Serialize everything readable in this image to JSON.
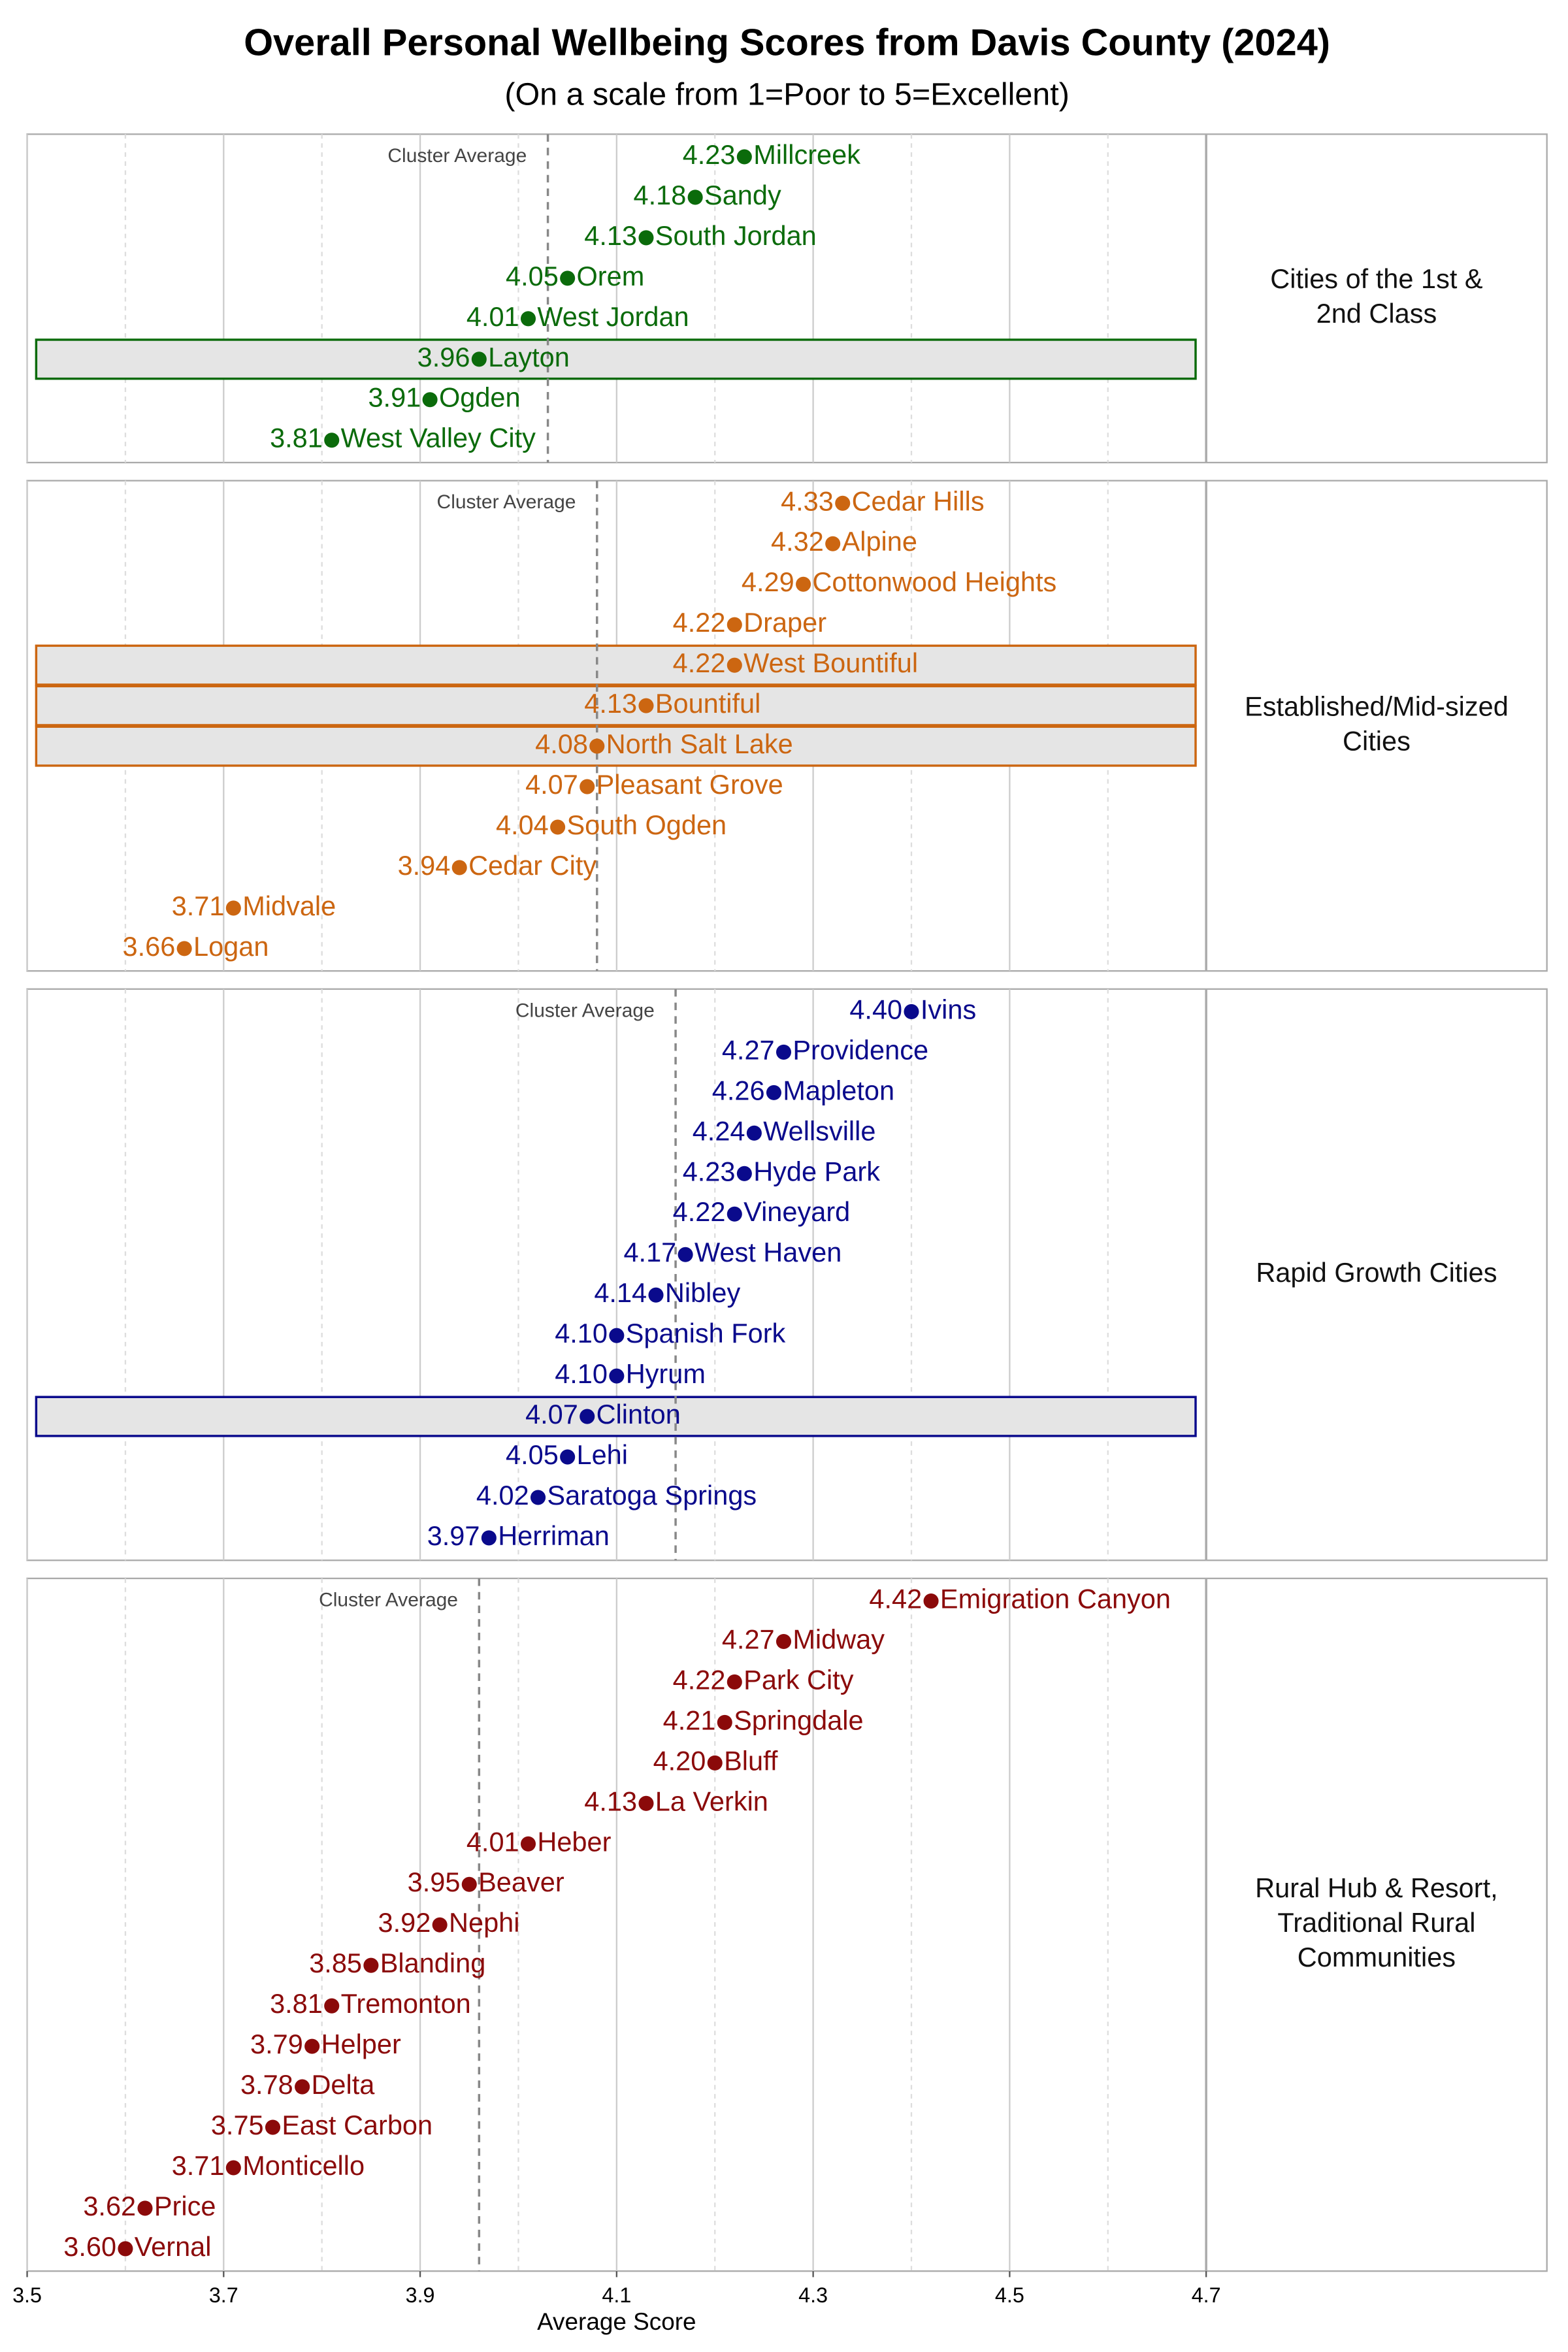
{
  "chart_data": {
    "type": "dot",
    "title": "Overall Personal Wellbeing Scores from Davis County (2024)",
    "subtitle": "(On a scale from 1=Poor to 5=Excellent)",
    "xlabel": "Average Score",
    "xlim": [
      3.5,
      4.7
    ],
    "xticks": [
      3.5,
      3.7,
      3.9,
      4.1,
      4.3,
      4.5,
      4.7
    ],
    "minor_xticks": [
      3.6,
      3.8,
      4.0,
      4.2,
      4.4,
      4.6
    ],
    "grid": true,
    "reference_label": "Cluster Average",
    "panels": [
      {
        "label_lines": [
          "Cities of the 1st &",
          "2nd Class"
        ],
        "color": "#0b6b0b",
        "categories": [
          "Millcreek",
          "Sandy",
          "South Jordan",
          "Orem",
          "West Jordan",
          "Layton",
          "Ogden",
          "West Valley City"
        ],
        "values": [
          4.23,
          4.18,
          4.13,
          4.05,
          4.01,
          3.96,
          3.91,
          3.81
        ],
        "value_labels": [
          "4.23",
          "4.18",
          "4.13",
          "4.05",
          "4.01",
          "3.96",
          "3.91",
          "3.81"
        ],
        "highlighted": [
          false,
          false,
          false,
          false,
          false,
          true,
          false,
          false
        ],
        "reference": 4.03
      },
      {
        "label_lines": [
          "Established/Mid-sized",
          "Cities"
        ],
        "color": "#cc6611",
        "categories": [
          "Cedar Hills",
          "Alpine",
          "Cottonwood Heights",
          "Draper",
          "West Bountiful",
          "Bountiful",
          "North Salt Lake",
          "Pleasant Grove",
          "South Ogden",
          "Cedar City",
          "Midvale",
          "Logan"
        ],
        "values": [
          4.33,
          4.32,
          4.29,
          4.22,
          4.22,
          4.13,
          4.08,
          4.07,
          4.04,
          3.94,
          3.71,
          3.66
        ],
        "value_labels": [
          "4.33",
          "4.32",
          "4.29",
          "4.22",
          "4.22",
          "4.13",
          "4.08",
          "4.07",
          "4.04",
          "3.94",
          "3.71",
          "3.66"
        ],
        "highlighted": [
          false,
          false,
          false,
          false,
          true,
          true,
          true,
          false,
          false,
          false,
          false,
          false
        ],
        "reference": 4.08
      },
      {
        "label_lines": [
          "Rapid Growth Cities"
        ],
        "color": "#0a0a8c",
        "categories": [
          "Ivins",
          "Providence",
          "Mapleton",
          "Wellsville",
          "Hyde Park",
          "Vineyard",
          "West Haven",
          "Nibley",
          "Spanish Fork",
          "Hyrum",
          "Clinton",
          "Lehi",
          "Saratoga Springs",
          "Herriman"
        ],
        "values": [
          4.4,
          4.27,
          4.26,
          4.24,
          4.23,
          4.22,
          4.17,
          4.14,
          4.1,
          4.1,
          4.07,
          4.05,
          4.02,
          3.97
        ],
        "value_labels": [
          "4.40",
          "4.27",
          "4.26",
          "4.24",
          "4.23",
          "4.22",
          "4.17",
          "4.14",
          "4.10",
          "4.10",
          "4.07",
          "4.05",
          "4.02",
          "3.97"
        ],
        "highlighted": [
          false,
          false,
          false,
          false,
          false,
          false,
          false,
          false,
          false,
          false,
          true,
          false,
          false,
          false
        ],
        "reference": 4.16
      },
      {
        "label_lines": [
          "Rural Hub & Resort,",
          "Traditional Rural",
          "Communities"
        ],
        "color": "#8b0a0a",
        "categories": [
          "Emigration Canyon",
          "Midway",
          "Park City",
          "Springdale",
          "Bluff",
          "La Verkin",
          "Heber",
          "Beaver",
          "Nephi",
          "Blanding",
          "Tremonton",
          "Helper",
          "Delta",
          "East Carbon",
          "Monticello",
          "Price",
          "Vernal"
        ],
        "values": [
          4.42,
          4.27,
          4.22,
          4.21,
          4.2,
          4.13,
          4.01,
          3.95,
          3.92,
          3.85,
          3.81,
          3.79,
          3.78,
          3.75,
          3.71,
          3.62,
          3.6
        ],
        "value_labels": [
          "4.42",
          "4.27",
          "4.22",
          "4.21",
          "4.20",
          "4.13",
          "4.01",
          "3.95",
          "3.92",
          "3.85",
          "3.81",
          "3.79",
          "3.78",
          "3.75",
          "3.71",
          "3.62",
          "3.60"
        ],
        "highlighted": [
          false,
          false,
          false,
          false,
          false,
          false,
          false,
          false,
          false,
          false,
          false,
          false,
          false,
          false,
          false,
          false,
          false
        ],
        "reference": 3.96
      }
    ]
  }
}
